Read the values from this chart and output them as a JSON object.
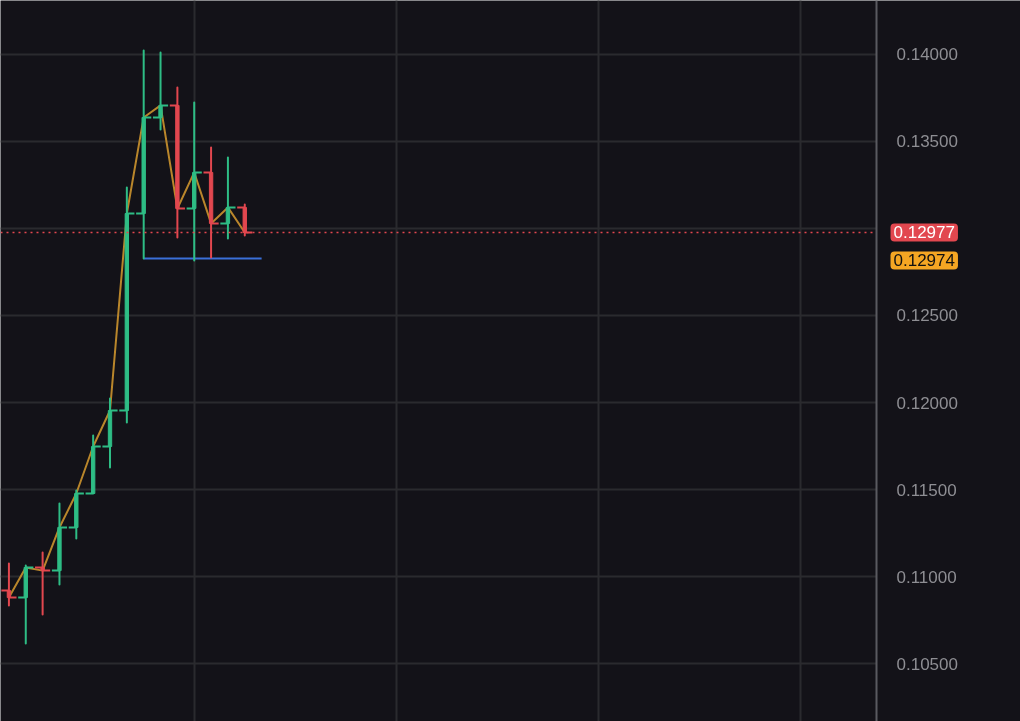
{
  "chart_data": {
    "type": "candlestick",
    "categories": [
      null,
      null,
      null,
      null,
      null,
      null,
      null,
      null,
      null,
      null,
      null,
      null,
      null,
      null,
      null,
      null,
      null,
      null,
      null,
      null,
      null,
      null,
      null,
      null,
      null,
      null,
      null,
      null,
      null,
      null,
      null,
      null,
      null,
      null,
      null,
      null,
      null,
      null,
      null,
      null,
      null,
      null,
      null,
      null,
      null,
      null,
      null,
      null,
      null,
      null,
      null,
      null
    ],
    "ohlc": [
      [
        0.1092,
        0.11075,
        0.10833,
        0.10879
      ],
      [
        0.10879,
        0.11063,
        0.10615,
        0.11052
      ],
      [
        0.11052,
        0.11138,
        0.10782,
        0.11034
      ],
      [
        0.11034,
        0.1142,
        0.10954,
        0.11282
      ],
      [
        0.11282,
        0.11494,
        0.11218,
        0.11477
      ],
      [
        0.11477,
        0.1181,
        0.11477,
        0.11747
      ],
      [
        0.11747,
        0.12023,
        0.11626,
        0.11954
      ],
      [
        0.11954,
        0.13236,
        0.11885,
        0.13086
      ],
      [
        0.13086,
        0.14023,
        0.12828,
        0.13638
      ],
      [
        0.13638,
        0.14011,
        0.13569,
        0.13707
      ],
      [
        0.13707,
        0.1381,
        0.12948,
        0.13115
      ],
      [
        0.13115,
        0.13724,
        0.12816,
        0.13322
      ],
      [
        0.13322,
        0.13466,
        0.12833,
        0.13029
      ],
      [
        0.13029,
        0.13408,
        0.12943,
        0.13121
      ],
      [
        0.13121,
        0.13138,
        0.1296,
        0.12977
      ],
      null,
      null,
      null,
      null,
      null,
      null,
      null,
      null,
      null,
      null,
      null,
      null,
      null,
      null,
      null,
      null,
      null,
      null,
      null,
      null,
      null,
      null,
      null,
      null,
      null,
      null,
      null,
      null,
      null,
      null,
      null,
      null,
      null,
      null,
      null,
      null,
      null
    ],
    "colors": [
      "#e2474f",
      "#2ebd85",
      "#e2474f",
      "#2ebd85",
      "#2ebd85",
      "#2ebd85",
      "#2ebd85",
      "#2ebd85",
      "#2ebd85",
      "#2ebd85",
      "#e2474f",
      "#2ebd85",
      "#e2474f",
      "#2ebd85",
      "#e2474f",
      null,
      null,
      null,
      null,
      null,
      null,
      null,
      null,
      null,
      null,
      null,
      null,
      null,
      null,
      null,
      null,
      null,
      null,
      null,
      null,
      null,
      null,
      null,
      null,
      null,
      null,
      null,
      null,
      null,
      null,
      null,
      null,
      null,
      null,
      null,
      null,
      null
    ],
    "series": [
      {
        "type": "line",
        "color": "#b9862b",
        "values": [
          0.10879,
          0.11052,
          0.11034,
          0.11282,
          0.11477,
          0.11747,
          0.11954,
          0.13086,
          0.13638,
          0.13707,
          0.13115,
          0.13322,
          0.13029,
          0.13121,
          0.12977,
          null,
          null,
          null,
          null,
          null,
          null,
          null,
          null,
          null,
          null,
          null,
          null,
          null,
          null,
          null,
          null,
          null,
          null,
          null,
          null,
          null,
          null,
          null,
          null,
          null,
          null,
          null,
          null,
          null,
          null,
          null,
          null,
          null,
          null,
          null,
          null,
          null
        ]
      },
      {
        "type": "line",
        "color": "#3a6fd8",
        "values": [
          null,
          null,
          null,
          null,
          null,
          null,
          null,
          null,
          0.12828,
          0.12828,
          0.12828,
          0.12828,
          0.12828,
          0.12828,
          0.12828,
          0.12828,
          null,
          null,
          null,
          null,
          null,
          null,
          null,
          null,
          null,
          null,
          null,
          null,
          null,
          null,
          null,
          null,
          null,
          null,
          null,
          null,
          null,
          null,
          null,
          null,
          null,
          null,
          null,
          null,
          null,
          null,
          null,
          null,
          null,
          null,
          null,
          null
        ]
      }
    ],
    "ref_lines": [
      {
        "axis": "y",
        "value": 0.12977,
        "label": "0.12977",
        "color": "#e2474f",
        "line_style": "dotted"
      }
    ],
    "annotations": [
      "0.12974"
    ],
    "ylim": [
      0.10167,
      0.1431
    ],
    "yticks": [
      {
        "value": 0.105,
        "label": "0.10500"
      },
      {
        "value": 0.11,
        "label": "0.11000"
      },
      {
        "value": 0.115,
        "label": "0.11500"
      },
      {
        "value": 0.12,
        "label": "0.12000"
      },
      {
        "value": 0.125,
        "label": "0.12500"
      },
      {
        "value": 0.13,
        "label": null
      },
      {
        "value": 0.135,
        "label": "0.13500"
      },
      {
        "value": 0.14,
        "label": "0.14000"
      }
    ],
    "grid": true,
    "tick_labels": "y"
  }
}
